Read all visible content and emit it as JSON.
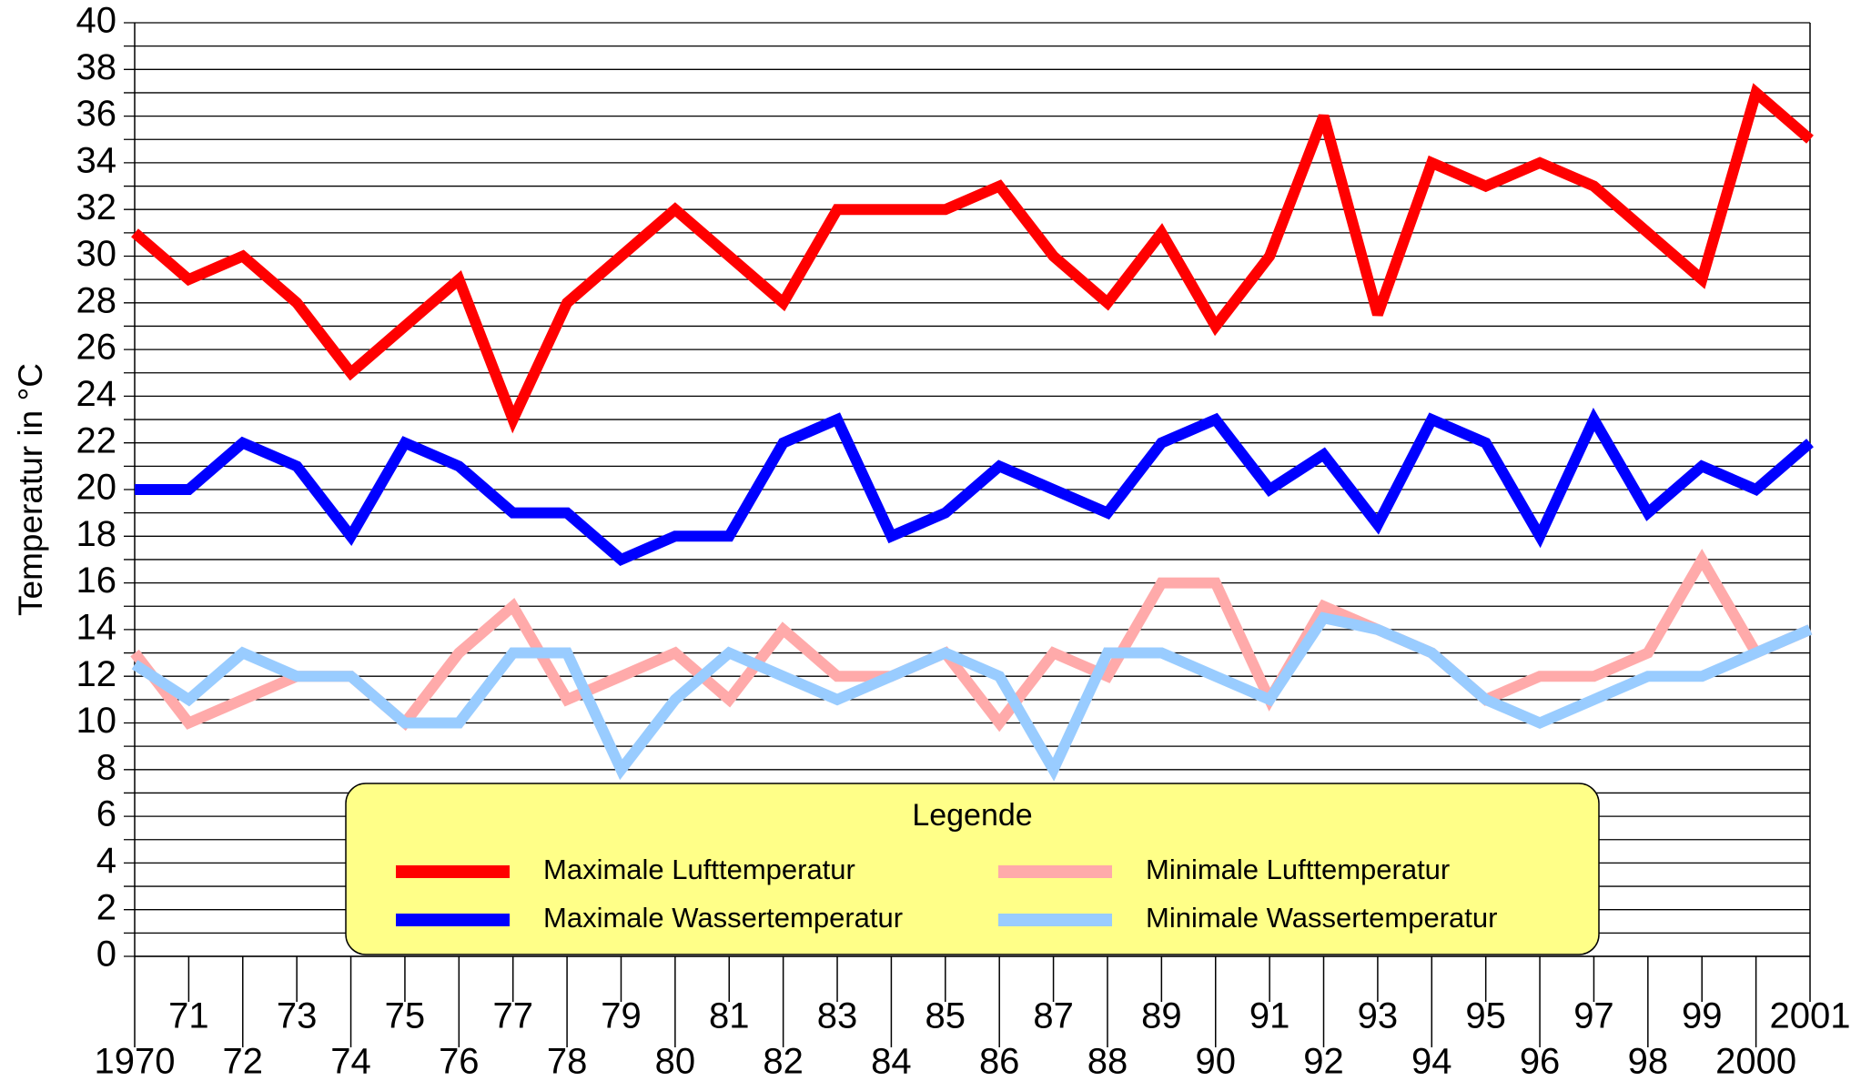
{
  "chart_data": {
    "type": "line",
    "y_label": "Temperatur in °C",
    "categories": [
      "1970",
      "71",
      "72",
      "73",
      "74",
      "75",
      "76",
      "77",
      "78",
      "79",
      "80",
      "81",
      "82",
      "83",
      "84",
      "85",
      "86",
      "87",
      "88",
      "89",
      "90",
      "91",
      "92",
      "93",
      "94",
      "95",
      "96",
      "97",
      "98",
      "99",
      "2000",
      "2001"
    ],
    "series": [
      {
        "name": "Maximale Lufttemperatur",
        "color": "#ff0000",
        "values": [
          31,
          29,
          30,
          28,
          25,
          27,
          29,
          23,
          28,
          30,
          32,
          30,
          28,
          32,
          32,
          32,
          33,
          30,
          28,
          31,
          27,
          30,
          36,
          27.5,
          34,
          33,
          34,
          33,
          31,
          29,
          37,
          35
        ]
      },
      {
        "name": "Maximale Wassertemperatur",
        "color": "#0000ff",
        "values": [
          20,
          20,
          22,
          21,
          18,
          22,
          21,
          19,
          19,
          17,
          18,
          18,
          22,
          23,
          18,
          19,
          21,
          20,
          19,
          22,
          23,
          20,
          21.5,
          18.5,
          23,
          22,
          18,
          23,
          19,
          21,
          20,
          22
        ]
      },
      {
        "name": "Minimale Lufttemperatur",
        "color": "#ffaaaa",
        "values": [
          13,
          10,
          11,
          12,
          12,
          10,
          13,
          15,
          11,
          12,
          13,
          11,
          14,
          12,
          12,
          13,
          10,
          13,
          12,
          16,
          16,
          11,
          15,
          14,
          13,
          11,
          12,
          12,
          13,
          17,
          13,
          14
        ]
      },
      {
        "name": "Minimale Wassertemperatur",
        "color": "#99ccff",
        "values": [
          12.5,
          11,
          13,
          12,
          12,
          10,
          10,
          13,
          13,
          8,
          11,
          13,
          12,
          11,
          12,
          13,
          12,
          8,
          13,
          13,
          12,
          11,
          14.5,
          14,
          13,
          11,
          10,
          11,
          12,
          12,
          13,
          14
        ]
      }
    ],
    "ylim": [
      0,
      40
    ],
    "yticks": [
      0,
      2,
      4,
      6,
      8,
      10,
      12,
      14,
      16,
      18,
      20,
      22,
      24,
      26,
      28,
      30,
      32,
      34,
      36,
      38,
      40
    ],
    "minor_yticks": [
      1,
      3,
      5,
      7,
      9,
      11,
      13,
      15,
      17,
      19,
      21,
      23,
      25,
      27,
      29,
      31,
      33,
      35,
      37,
      39
    ],
    "grid": true,
    "legend_title": "Legende",
    "legend_background": "#ffff88"
  }
}
